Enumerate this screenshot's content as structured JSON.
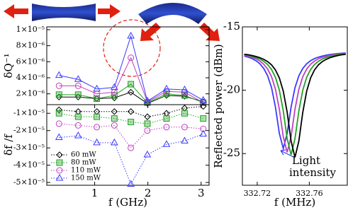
{
  "chart_data": [
    {
      "type": "line",
      "y_label": "δQ⁻¹",
      "line_style": "solid",
      "x": [
        0.33,
        0.69,
        1.04,
        1.37,
        1.68,
        1.99,
        2.35,
        2.69,
        3.04
      ],
      "xlim": [
        0.1,
        3.15
      ],
      "ylim": [
        6.5e-07,
        1.035e-05
      ],
      "yticks": [
        {
          "value": 2e-06,
          "label": "2×10⁻⁶"
        },
        {
          "value": 4e-06,
          "label": "4×10⁻⁶"
        },
        {
          "value": 6e-06,
          "label": "6×10⁻⁶"
        },
        {
          "value": 8e-06,
          "label": "8×10⁻⁶"
        },
        {
          "value": 1e-05,
          "label": "1×10⁻⁵"
        }
      ],
      "series": [
        {
          "color": "#000000",
          "marker": "diamond",
          "values": [
            1.6e-06,
            1.6e-06,
            1.4e-06,
            1.5e-06,
            2.2e-06,
            8e-07,
            1.8e-06,
            1.7e-06,
            1e-06
          ]
        },
        {
          "color": "#22a022",
          "marker": "square",
          "values": [
            1.9e-06,
            1.9e-06,
            1.4e-06,
            1.8e-06,
            3.2e-06,
            9e-07,
            2e-06,
            1.8e-06,
            9e-07
          ]
        },
        {
          "color": "#c040c0",
          "marker": "circle",
          "values": [
            3e-06,
            3e-06,
            2e-06,
            2.2e-06,
            6.5e-06,
            1e-06,
            2.3e-06,
            2.2e-06,
            9e-07
          ]
        },
        {
          "color": "#3a3aff",
          "marker": "triangle",
          "values": [
            4.3e-06,
            3.8e-06,
            2.6e-06,
            2.8e-06,
            9.2e-06,
            1.1e-06,
            2.6e-06,
            2.5e-06,
            1.2e-06
          ]
        }
      ]
    },
    {
      "type": "line",
      "y_label": "δf /f",
      "x_label": "f (GHz)",
      "line_style": "dotted",
      "legend": "lower left",
      "x": [
        0.33,
        0.69,
        1.04,
        1.37,
        1.68,
        1.99,
        2.35,
        2.69,
        3.04
      ],
      "xlim": [
        0.1,
        3.15
      ],
      "xticks": [
        1,
        2,
        3
      ],
      "ylim": [
        -5.16e-05,
        -5e-06
      ],
      "yticks": [
        {
          "value": -1e-05,
          "label": "-1×10⁻⁵"
        },
        {
          "value": -2e-05,
          "label": "-2×10⁻⁵"
        },
        {
          "value": -3e-05,
          "label": "-3×10⁻⁵"
        },
        {
          "value": -4e-05,
          "label": "-4×10⁻⁵"
        },
        {
          "value": -5e-05,
          "label": "-5×10⁻⁵"
        }
      ],
      "series": [
        {
          "name": "60 mW",
          "color": "#000000",
          "marker": "diamond",
          "values": [
            -8e-06,
            -9e-06,
            -9e-06,
            -9e-06,
            -9e-06,
            -1.2e-05,
            -1e-05,
            -7e-06,
            -6e-06
          ]
        },
        {
          "name": "80 mW",
          "color": "#22a022",
          "marker": "square",
          "values": [
            -1e-05,
            -1.2e-05,
            -1.2e-05,
            -1.3e-05,
            -1.5e-05,
            -1.6e-05,
            -1.3e-05,
            -1e-05,
            -1.3e-05
          ]
        },
        {
          "name": "110 mW",
          "color": "#c040c0",
          "marker": "circle",
          "values": [
            -1.6e-05,
            -1.7e-05,
            -1.8e-05,
            -1.7e-05,
            -3e-05,
            -2e-05,
            -1.8e-05,
            -1.8e-05,
            -1.9e-05
          ]
        },
        {
          "name": "150 mW",
          "color": "#3a3aff",
          "marker": "triangle",
          "values": [
            -2.4e-05,
            -2.3e-05,
            -2.7e-05,
            -2.7e-05,
            -5.1e-05,
            -3.4e-05,
            -2.8e-05,
            -2.6e-05,
            -2.2e-05
          ]
        }
      ]
    },
    {
      "type": "line",
      "y_label": "Reflected power (dBm)",
      "x_label": "f (MHz)",
      "line_style": "solid",
      "annotation": [
        "Light",
        "intensity"
      ],
      "x": [
        332.71,
        332.713,
        332.716,
        332.719,
        332.722,
        332.725,
        332.728,
        332.731,
        332.734,
        332.737,
        332.74,
        332.743,
        332.746,
        332.749,
        332.752,
        332.755,
        332.758,
        332.761,
        332.764,
        332.767,
        332.77,
        332.773,
        332.776,
        332.779,
        332.782,
        332.785,
        332.788
      ],
      "xlim": [
        332.7086,
        332.7892
      ],
      "xticks": [
        332.72,
        332.76
      ],
      "ylim": [
        -27.5,
        -15
      ],
      "yticks": [
        -15,
        -20,
        -25
      ],
      "series": [
        {
          "color": "#3a3aff",
          "values": [
            -17.3,
            -17.39,
            -17.5,
            -17.67,
            -17.91,
            -18.28,
            -18.86,
            -19.8,
            -21.34,
            -23.41,
            -24.6,
            -23.41,
            -21.34,
            -19.8,
            -18.86,
            -18.28,
            -17.91,
            -17.67,
            -17.5,
            -17.39,
            -17.3,
            -17.23,
            -17.18,
            -17.14,
            -17.11,
            -17.08,
            -17.06
          ]
        },
        {
          "color": "#c040c0",
          "values": [
            -17.24,
            -17.32,
            -17.4,
            -17.52,
            -17.7,
            -17.95,
            -18.33,
            -18.93,
            -19.92,
            -21.51,
            -23.66,
            -24.9,
            -23.66,
            -21.51,
            -19.92,
            -18.93,
            -18.33,
            -17.95,
            -17.7,
            -17.52,
            -17.4,
            -17.32,
            -17.24,
            -17.19,
            -17.15,
            -17.12,
            -17.09
          ]
        },
        {
          "color": "#22a022",
          "values": [
            -17.2,
            -17.25,
            -17.33,
            -17.42,
            -17.54,
            -17.72,
            -17.97,
            -18.37,
            -18.98,
            -19.99,
            -21.62,
            -23.83,
            -25.1,
            -23.83,
            -21.62,
            -19.99,
            -18.98,
            -18.37,
            -17.97,
            -17.72,
            -17.54,
            -17.42,
            -17.33,
            -17.25,
            -17.2,
            -17.15,
            -17.12
          ]
        },
        {
          "color": "#000000",
          "values": [
            -17.16,
            -17.2,
            -17.26,
            -17.34,
            -17.43,
            -17.56,
            -17.74,
            -18.0,
            -18.4,
            -19.03,
            -20.07,
            -21.74,
            -24.0,
            -25.3,
            -24.0,
            -21.74,
            -20.07,
            -19.03,
            -18.4,
            -18.0,
            -17.74,
            -17.56,
            -17.43,
            -17.34,
            -17.26,
            -17.2,
            -17.16
          ]
        }
      ]
    }
  ]
}
